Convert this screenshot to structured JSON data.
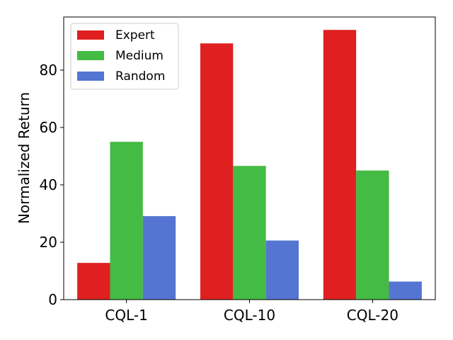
{
  "chart_data": {
    "type": "bar",
    "title": "",
    "xlabel": "",
    "ylabel": "Normalized Return",
    "categories": [
      "CQL-1",
      "CQL-10",
      "CQL-20"
    ],
    "series": [
      {
        "name": "Expert",
        "color": "#e02020",
        "values": [
          12.8,
          89.3,
          94.0
        ]
      },
      {
        "name": "Medium",
        "color": "#44bb44",
        "values": [
          55.0,
          46.6,
          45.0
        ]
      },
      {
        "name": "Random",
        "color": "#5575d2",
        "values": [
          29.1,
          20.6,
          6.3
        ]
      }
    ],
    "ylim": [
      0,
      98.5
    ],
    "yticks": [
      0,
      20,
      40,
      60,
      80
    ],
    "yticks_labels": [
      "0",
      "20",
      "40",
      "60",
      "80"
    ],
    "grid": false,
    "legend_position": "top-left"
  }
}
